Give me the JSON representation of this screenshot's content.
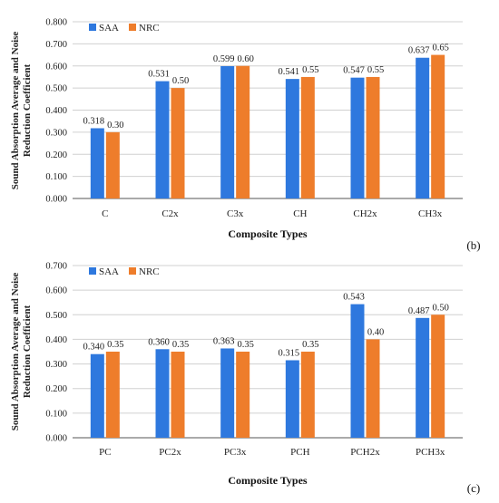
{
  "colors": {
    "saa": "#2e78de",
    "nrc": "#ee7d2b",
    "grid": "#d0d0d0",
    "axis": "#555555"
  },
  "chart_data": [
    {
      "type": "bar",
      "panel_label": "(b)",
      "categories": [
        "C",
        "C2x",
        "C3x",
        "CH",
        "CH2x",
        "CH3x"
      ],
      "series": [
        {
          "name": "SAA",
          "values": [
            0.318,
            0.531,
            0.599,
            0.541,
            0.547,
            0.637
          ],
          "labels": [
            "0.318",
            "0.531",
            "0.599",
            "0.541",
            "0.547",
            "0.637"
          ]
        },
        {
          "name": "NRC",
          "values": [
            0.3,
            0.5,
            0.6,
            0.55,
            0.55,
            0.65
          ],
          "labels": [
            "0.30",
            "0.50",
            "0.60",
            "0.55",
            "0.55",
            "0.65"
          ]
        }
      ],
      "yticks": [
        "0.000",
        "0.100",
        "0.200",
        "0.300",
        "0.400",
        "0.500",
        "0.600",
        "0.700",
        "0.800"
      ],
      "ylim": [
        0,
        0.8
      ],
      "ylabel_lines": [
        "Sound Absorption Average and Noise",
        "Reduction Coefficient"
      ],
      "xlabel": "Composite Types",
      "legend": "top-left",
      "grid": true
    },
    {
      "type": "bar",
      "panel_label": "(c)",
      "categories": [
        "PC",
        "PC2x",
        "PC3x",
        "PCH",
        "PCH2x",
        "PCH3x"
      ],
      "series": [
        {
          "name": "SAA",
          "values": [
            0.34,
            0.36,
            0.363,
            0.315,
            0.543,
            0.487
          ],
          "labels": [
            "0.340",
            "0.360",
            "0.363",
            "0.315",
            "0.543",
            "0.487"
          ]
        },
        {
          "name": "NRC",
          "values": [
            0.35,
            0.35,
            0.35,
            0.35,
            0.4,
            0.5
          ],
          "labels": [
            "0.35",
            "0.35",
            "0.35",
            "0.35",
            "0.40",
            "0.50"
          ]
        }
      ],
      "yticks": [
        "0.000",
        "0.100",
        "0.200",
        "0.300",
        "0.400",
        "0.500",
        "0.600",
        "0.700"
      ],
      "ylim": [
        0,
        0.7
      ],
      "ylabel_lines": [
        "Sound Absorption Average and Noise",
        "Reduction Coefficient"
      ],
      "xlabel": "Composite Types",
      "legend": "top-left",
      "grid": true
    }
  ]
}
